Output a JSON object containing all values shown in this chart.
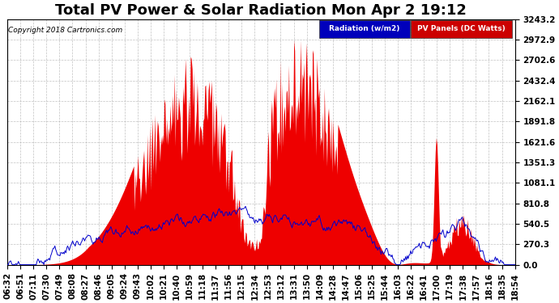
{
  "title": "Total PV Power & Solar Radiation Mon Apr 2 19:12",
  "copyright": "Copyright 2018 Cartronics.com",
  "yticks": [
    0.0,
    270.3,
    540.5,
    810.8,
    1081.1,
    1351.3,
    1621.6,
    1891.8,
    2162.1,
    2432.4,
    2702.6,
    2972.9,
    3243.2
  ],
  "ymax": 3243.2,
  "ymin": 0.0,
  "legend_radiation_label": "Radiation (w/m2)",
  "legend_pv_label": "PV Panels (DC Watts)",
  "legend_radiation_bg": "#0000bb",
  "legend_pv_bg": "#cc0000",
  "background_color": "#ffffff",
  "plot_bg": "#ffffff",
  "grid_color": "#bbbbbb",
  "fill_color": "#ee0000",
  "line_color": "#0000cc",
  "title_fontsize": 13,
  "tick_fontsize": 7.5,
  "xtick_labels": [
    "06:32",
    "06:51",
    "07:11",
    "07:30",
    "07:49",
    "08:08",
    "08:27",
    "08:46",
    "09:05",
    "09:24",
    "09:43",
    "10:02",
    "10:21",
    "10:40",
    "10:59",
    "11:18",
    "11:37",
    "11:56",
    "12:15",
    "12:34",
    "12:53",
    "13:12",
    "13:31",
    "13:50",
    "14:09",
    "14:28",
    "14:47",
    "15:06",
    "15:25",
    "15:44",
    "16:03",
    "16:22",
    "16:41",
    "17:00",
    "17:19",
    "17:38",
    "17:57",
    "18:16",
    "18:35",
    "18:54"
  ]
}
